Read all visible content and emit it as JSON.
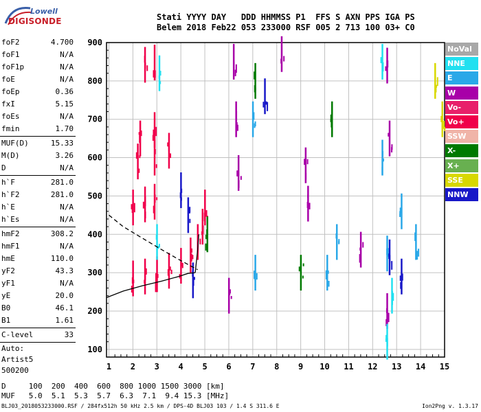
{
  "logo": {
    "line1": "Lowell",
    "line2": "DIGISONDE"
  },
  "header": {
    "line1": "Stati YYYY DAY   DDD HHMMSS P1  FFS S AXN PPS IGA PS",
    "line2": "Belem 2018 Feb22 053 233000 RSF 005 2 713 100 03+ C0"
  },
  "params": [
    {
      "key": "foF2",
      "value": "4.700"
    },
    {
      "key": "foF1",
      "value": "N/A"
    },
    {
      "key": "foF1p",
      "value": "N/A"
    },
    {
      "key": "foE",
      "value": "N/A"
    },
    {
      "key": "foEp",
      "value": "0.36"
    },
    {
      "key": "fxI",
      "value": "5.15"
    },
    {
      "key": "foEs",
      "value": "N/A"
    },
    {
      "key": "fmin",
      "value": "1.70"
    },
    {
      "sep": true
    },
    {
      "key": "MUF(D)",
      "value": "15.33"
    },
    {
      "key": "M(D)",
      "value": "3.26"
    },
    {
      "key": "D",
      "value": "N/A"
    },
    {
      "sep": true
    },
    {
      "key": "h`F",
      "value": "281.0"
    },
    {
      "key": "h`F2",
      "value": "281.0"
    },
    {
      "key": "h`E",
      "value": "N/A"
    },
    {
      "key": "h`Es",
      "value": "N/A"
    },
    {
      "sep": true
    },
    {
      "key": "hmF2",
      "value": "308.2"
    },
    {
      "key": "hmF1",
      "value": "N/A"
    },
    {
      "key": "hmE",
      "value": "110.0"
    },
    {
      "key": "yF2",
      "value": "43.3"
    },
    {
      "key": "yF1",
      "value": "N/A"
    },
    {
      "key": "yE",
      "value": "20.0"
    },
    {
      "key": "B0",
      "value": "46.1"
    },
    {
      "key": "B1",
      "value": "1.61"
    },
    {
      "sep": true
    },
    {
      "key": "C-level",
      "value": "33"
    },
    {
      "sep": true
    }
  ],
  "params_free": [
    "Auto:",
    "Artist5",
    "500200"
  ],
  "legend": [
    {
      "label": "NoVal",
      "color": "#a8a8a8"
    },
    {
      "label": "NNE",
      "color": "#22e0f0"
    },
    {
      "label": "E",
      "color": "#2aa8e8"
    },
    {
      "label": "W",
      "color": "#a800a8"
    },
    {
      "label": "Vo-",
      "color": "#e8206a"
    },
    {
      "label": "Vo+",
      "color": "#f0004a"
    },
    {
      "label": "SSW",
      "color": "#f0b4a8"
    },
    {
      "label": "X-",
      "color": "#007a00"
    },
    {
      "label": "X+",
      "color": "#68b050"
    },
    {
      "label": "SSE",
      "color": "#d8d800"
    },
    {
      "label": "NNW",
      "color": "#1818c8"
    }
  ],
  "muf_table": {
    "line1": "D     100  200  400  600  800 1000 1500 3000 [km]",
    "line2": "MUF   5.0  5.1  5.3  5.7  6.3  7.1  9.4 15.3 [MHz]"
  },
  "footer": "BLJ03_2018053233000.RSF / 284fx512h 50 kHz 2.5 km / DPS-4D BLJ03 103 / 1.4 S 311.6 E",
  "version": "Ion2Png v. 1.3.17",
  "chart_data": {
    "type": "scatter",
    "xlabel": "",
    "ylabel": "",
    "xlim": [
      0.9,
      15.0
    ],
    "ylim": [
      80,
      900
    ],
    "xticks": [
      1,
      2,
      3,
      4,
      5,
      6,
      7,
      8,
      9,
      10,
      11,
      12,
      13,
      14,
      15
    ],
    "yticks": [
      100,
      200,
      300,
      400,
      500,
      600,
      700,
      800,
      900
    ],
    "grid": true,
    "traces": [
      {
        "name": "O-trace F2",
        "color": "#f0004a",
        "points": [
          [
            2.0,
            285
          ],
          [
            2.5,
            290
          ],
          [
            3.0,
            296
          ],
          [
            3.5,
            305
          ],
          [
            4.0,
            318
          ],
          [
            4.4,
            345
          ],
          [
            4.7,
            380
          ],
          [
            4.9,
            420
          ],
          [
            5.0,
            470
          ]
        ]
      },
      {
        "name": "O-trace echoes 2nd hop",
        "color": "#f0004a",
        "points": [
          [
            2.0,
            470
          ],
          [
            2.5,
            478
          ],
          [
            2.9,
            485
          ],
          [
            2.2,
            590
          ],
          [
            2.9,
            600
          ],
          [
            2.3,
            650
          ],
          [
            2.9,
            672
          ],
          [
            3.5,
            618
          ],
          [
            2.5,
            842
          ],
          [
            2.9,
            848
          ]
        ]
      },
      {
        "name": "ECHO W",
        "color": "#a800a8",
        "points": [
          [
            6.2,
            850
          ],
          [
            6.3,
            700
          ],
          [
            6.4,
            560
          ],
          [
            6.0,
            240
          ],
          [
            8.2,
            870
          ],
          [
            9.2,
            580
          ],
          [
            9.3,
            480
          ],
          [
            11.5,
            360
          ],
          [
            12.6,
            840
          ],
          [
            12.7,
            650
          ],
          [
            12.6,
            200
          ]
        ]
      },
      {
        "name": "ECHO E",
        "color": "#2aa8e8",
        "points": [
          [
            7.0,
            700
          ],
          [
            7.1,
            300
          ],
          [
            10.1,
            300
          ],
          [
            10.5,
            380
          ],
          [
            12.4,
            600
          ],
          [
            12.6,
            350
          ],
          [
            13.2,
            460
          ],
          [
            13.8,
            380
          ]
        ]
      },
      {
        "name": "ECHO NNE",
        "color": "#22e0f0",
        "points": [
          [
            3.1,
            820
          ],
          [
            3.0,
            380
          ],
          [
            12.4,
            850
          ],
          [
            12.6,
            120
          ],
          [
            12.8,
            240
          ]
        ]
      },
      {
        "name": "ECHO NNW",
        "color": "#1818c8",
        "points": [
          [
            4.0,
            515
          ],
          [
            4.3,
            450
          ],
          [
            4.5,
            280
          ],
          [
            7.5,
            760
          ],
          [
            12.7,
            340
          ],
          [
            13.2,
            290
          ]
        ]
      },
      {
        "name": "ECHO X-",
        "color": "#007a00",
        "points": [
          [
            5.1,
            400
          ],
          [
            7.1,
            800
          ],
          [
            9.0,
            300
          ],
          [
            10.3,
            700
          ]
        ]
      },
      {
        "name": "ECHO SSE",
        "color": "#d8d800",
        "points": [
          [
            14.6,
            800
          ],
          [
            14.9,
            700
          ]
        ]
      }
    ],
    "profile_dashed": [
      [
        1.0,
        450
      ],
      [
        1.6,
        420
      ],
      [
        2.4,
        390
      ],
      [
        3.2,
        360
      ],
      [
        3.9,
        335
      ],
      [
        4.4,
        318
      ],
      [
        4.7,
        308
      ]
    ],
    "profile_solid_top": [
      [
        4.6,
        300
      ],
      [
        4.65,
        330
      ],
      [
        4.7,
        360
      ],
      [
        4.75,
        400
      ]
    ],
    "profile_solid_bottom": [
      [
        0.9,
        235
      ],
      [
        1.6,
        252
      ],
      [
        2.4,
        266
      ],
      [
        3.2,
        278
      ],
      [
        3.9,
        290
      ],
      [
        4.3,
        298
      ],
      [
        4.6,
        300
      ]
    ]
  }
}
